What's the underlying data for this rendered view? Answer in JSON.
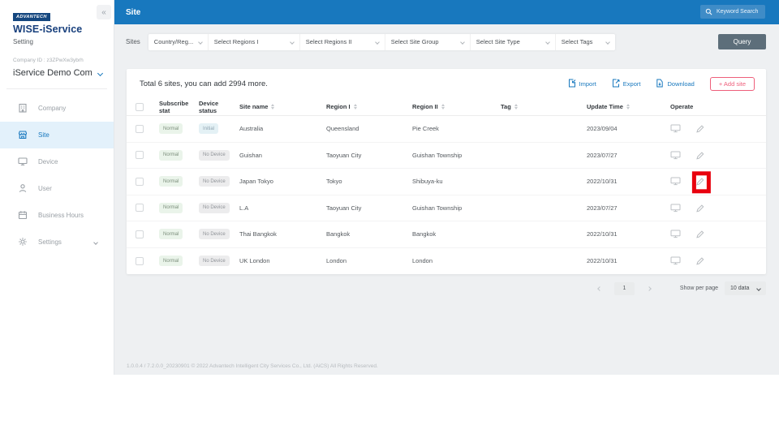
{
  "brand": {
    "logo_badge": "ADVANTECH",
    "product": "WISE-iService",
    "subtitle": "Setting",
    "company_id": "Company ID : z3ZPwXw3ybrh",
    "company_selector": "iService Demo Com"
  },
  "sidebar": {
    "items": [
      {
        "label": "Company",
        "icon": "building-icon",
        "active": false
      },
      {
        "label": "Site",
        "icon": "store-icon",
        "active": true
      },
      {
        "label": "Device",
        "icon": "monitor-icon",
        "active": false
      },
      {
        "label": "User",
        "icon": "user-icon",
        "active": false
      },
      {
        "label": "Business Hours",
        "icon": "calendar-icon",
        "active": false
      },
      {
        "label": "Settings",
        "icon": "gear-icon",
        "active": false,
        "expandable": true
      }
    ]
  },
  "header": {
    "title": "Site",
    "search_placeholder": "Keyword Search"
  },
  "filters": {
    "group_label": "Sites",
    "dropdowns": [
      "Country/Reg...",
      "Select Regions I",
      "Select Regions II",
      "Select Site Group",
      "Select Site Type",
      "Select Tags"
    ],
    "query_label": "Query"
  },
  "table": {
    "summary": "Total 6 sites, you can add 2994 more.",
    "actions": {
      "import": "Import",
      "export": "Export",
      "download": "Download",
      "add_site": "+ Add site"
    },
    "columns": [
      {
        "label": "Subscribe stat",
        "sortable": false
      },
      {
        "label": "Device status",
        "sortable": false
      },
      {
        "label": "Site name",
        "sortable": true
      },
      {
        "label": "Region I",
        "sortable": true
      },
      {
        "label": "Region II",
        "sortable": true
      },
      {
        "label": "Tag",
        "sortable": true
      },
      {
        "label": "Update Time",
        "sortable": true
      },
      {
        "label": "Operate",
        "sortable": false
      }
    ],
    "rows": [
      {
        "subscribe": "Normal",
        "device": "Initial",
        "site": "Australia",
        "region1": "Queensland",
        "region2": "Pie Creek",
        "tag": "",
        "updated": "2023/09/04",
        "highlighted": false
      },
      {
        "subscribe": "Normal",
        "device": "No Device",
        "site": "Guishan",
        "region1": "Taoyuan City",
        "region2": "Guishan Township",
        "tag": "",
        "updated": "2023/07/27",
        "highlighted": false
      },
      {
        "subscribe": "Normal",
        "device": "No Device",
        "site": "Japan Tokyo",
        "region1": "Tokyo",
        "region2": "Shibuya-ku",
        "tag": "",
        "updated": "2022/10/31",
        "highlighted": true
      },
      {
        "subscribe": "Normal",
        "device": "No Device",
        "site": "L.A",
        "region1": "Taoyuan City",
        "region2": "Guishan Township",
        "tag": "",
        "updated": "2023/07/27",
        "highlighted": false
      },
      {
        "subscribe": "Normal",
        "device": "No Device",
        "site": "Thai Bangkok",
        "region1": "Bangkok",
        "region2": "Bangkok",
        "tag": "",
        "updated": "2022/10/31",
        "highlighted": false
      },
      {
        "subscribe": "Normal",
        "device": "No Device",
        "site": "UK London",
        "region1": "London",
        "region2": "London",
        "tag": "",
        "updated": "2022/10/31",
        "highlighted": false
      }
    ]
  },
  "pagination": {
    "current_page": "1",
    "show_per_page_label": "Show per page",
    "page_size": "10 data"
  },
  "footer": {
    "text": "1.0.0.4 / 7.2.0.0_20230901 © 2022 Advantech Intelligent City Services Co., Ltd. (AiCS) All Rights Reserved."
  },
  "colors": {
    "header_blue": "#1878be",
    "accent_blue": "#1878be",
    "active_item_bg": "#e3f1fb",
    "add_site_pink": "#ee5f7b",
    "query_button_gray": "#5d6e7a",
    "badge_normal_bg": "#eaf4ea",
    "badge_initial_bg": "#e4f1f5",
    "badge_nodevice_bg": "#ececed",
    "annotation_red": "#e8000d"
  }
}
